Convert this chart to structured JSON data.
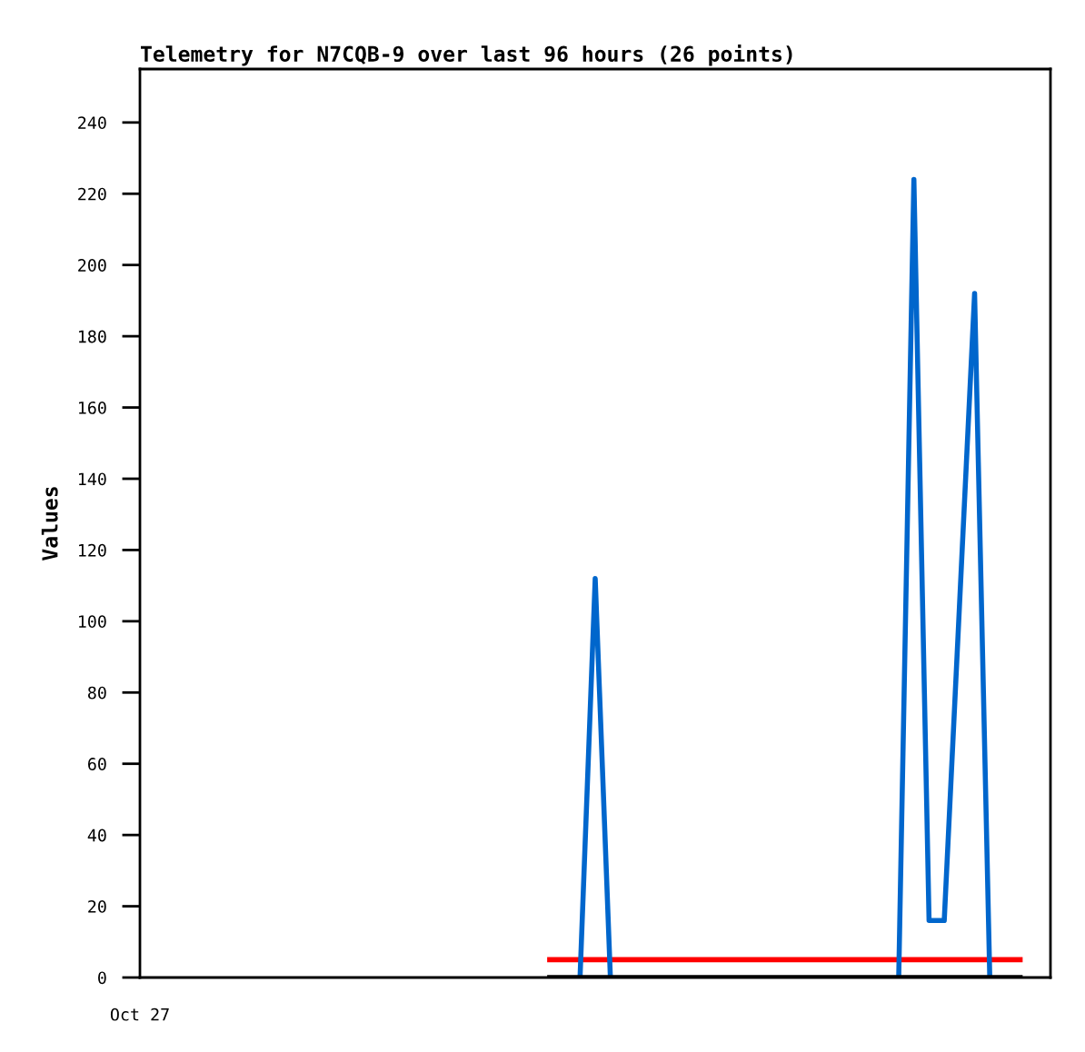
{
  "chart_data": {
    "type": "line",
    "title": "Telemetry for N7CQB-9 over last 96 hours (26 points)",
    "ylabel": "Values",
    "annotations": [
      "Oct 27"
    ],
    "categories": [
      null,
      null,
      null,
      null,
      null,
      null,
      null,
      null,
      null,
      null,
      null,
      null,
      null,
      null,
      null,
      null,
      null,
      null,
      null,
      null,
      null,
      null,
      null,
      null,
      null,
      null,
      null,
      null,
      null,
      null,
      null,
      null,
      null,
      null,
      null,
      null,
      null,
      null,
      null,
      null,
      null,
      null,
      null,
      null,
      null,
      null,
      null,
      null,
      null,
      null,
      null,
      null,
      null,
      null,
      null,
      null,
      null,
      null,
      null,
      null,
      null
    ],
    "ylim": [
      0,
      255
    ],
    "yticks": [
      0,
      20,
      40,
      60,
      80,
      100,
      120,
      140,
      160,
      180,
      200,
      220,
      240
    ],
    "grid": false,
    "legend": false,
    "line_style": "solid",
    "series": [
      {
        "color": "#ff0000",
        "values": [
          null,
          null,
          null,
          null,
          null,
          null,
          null,
          null,
          null,
          null,
          null,
          null,
          null,
          null,
          null,
          null,
          null,
          null,
          null,
          null,
          null,
          null,
          null,
          null,
          null,
          null,
          null,
          5,
          5,
          5,
          5,
          5,
          5,
          5,
          5,
          5,
          5,
          5,
          5,
          5,
          5,
          5,
          5,
          5,
          5,
          5,
          5,
          5,
          5,
          5,
          5,
          5,
          5,
          5,
          5,
          5,
          5,
          5,
          5,
          null,
          null
        ]
      },
      {
        "color": "#0066cc",
        "values": [
          null,
          null,
          null,
          null,
          null,
          null,
          null,
          null,
          null,
          null,
          null,
          null,
          null,
          null,
          null,
          null,
          null,
          null,
          null,
          null,
          null,
          null,
          null,
          null,
          null,
          null,
          null,
          null,
          null,
          0,
          112,
          0,
          null,
          null,
          null,
          null,
          null,
          null,
          null,
          null,
          null,
          null,
          null,
          null,
          null,
          null,
          null,
          null,
          null,
          null,
          0,
          224,
          16,
          16,
          104,
          192,
          0,
          null,
          null,
          null,
          null
        ]
      },
      {
        "color": "#000000",
        "values": [
          null,
          null,
          null,
          null,
          null,
          null,
          null,
          null,
          null,
          null,
          null,
          null,
          null,
          null,
          null,
          null,
          null,
          null,
          null,
          null,
          null,
          null,
          null,
          null,
          null,
          null,
          null,
          0,
          0,
          0,
          0,
          0,
          0,
          0,
          0,
          0,
          0,
          0,
          0,
          0,
          0,
          0,
          0,
          0,
          0,
          0,
          0,
          0,
          0,
          0,
          0,
          0,
          0,
          0,
          0,
          0,
          0,
          0,
          0,
          null,
          null
        ]
      }
    ]
  }
}
